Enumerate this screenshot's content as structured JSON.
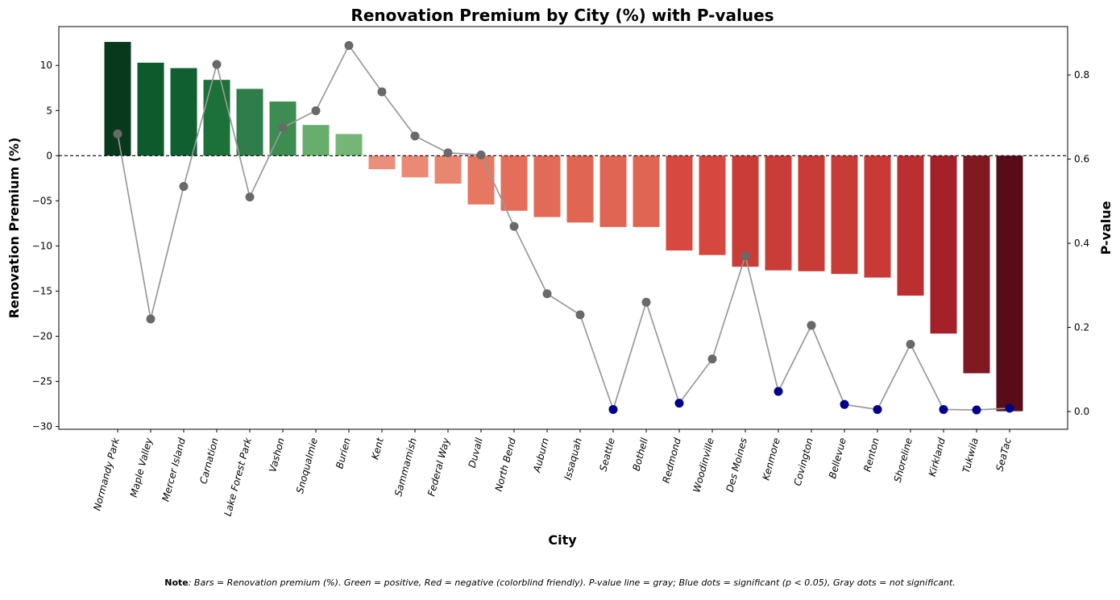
{
  "chart_data": {
    "type": "bar",
    "title": "Renovation Premium by City (%) with P-values",
    "xlabel": "City",
    "ylabel": "Renovation Premium (%)",
    "y2label": "P-value",
    "ylim": [
      -30.3,
      14.3
    ],
    "y2lim": [
      -0.042,
      0.915
    ],
    "yticks": [
      10,
      5,
      0,
      -5,
      -10,
      -15,
      -20,
      -25,
      -30
    ],
    "yticklabels": [
      "10",
      "5",
      "0",
      "−05",
      "−10",
      "−15",
      "−20",
      "−25",
      "−30"
    ],
    "y2ticks": [
      0.0,
      0.2,
      0.4,
      0.6,
      0.8
    ],
    "y2ticklabels": [
      "0.0",
      "0.2",
      "0.4",
      "0.6",
      "0.8"
    ],
    "reference_line": 0,
    "grid": false,
    "categories": [
      "Normandy Park",
      "Maple Valley",
      "Mercer Island",
      "Carnation",
      "Lake Forest Park",
      "Vashon",
      "Snoqualmie",
      "Burien",
      "Kent",
      "Sammamish",
      "Federal Way",
      "Duvall",
      "North Bend",
      "Auburn",
      "Issaquah",
      "Seattle",
      "Bothell",
      "Redmond",
      "Woodinville",
      "Des Moines",
      "Kenmore",
      "Covington",
      "Bellevue",
      "Renton",
      "Shoreline",
      "Kirkland",
      "Tukwila",
      "SeaTac"
    ],
    "series": [
      {
        "values": [
          12.6,
          10.3,
          9.7,
          8.4,
          7.4,
          6.0,
          3.4,
          2.4,
          -1.5,
          -2.4,
          -3.1,
          -5.4,
          -6.1,
          -6.8,
          -7.4,
          -7.9,
          -7.9,
          -10.5,
          -11.0,
          -12.3,
          -12.7,
          -12.8,
          -13.1,
          -13.5,
          -15.5,
          -19.7,
          -24.1,
          -28.3
        ]
      },
      {
        "values": [
          0.66,
          0.22,
          0.535,
          0.825,
          0.51,
          0.675,
          0.715,
          0.87,
          0.76,
          0.655,
          0.615,
          0.61,
          0.44,
          0.28,
          0.23,
          0.005,
          0.26,
          0.02,
          0.125,
          0.37,
          0.048,
          0.205,
          0.017,
          0.005,
          0.16,
          0.005,
          0.004,
          0.008
        ]
      }
    ],
    "bar_colors": [
      "#08391c",
      "#0e5a2d",
      "#105f31",
      "#1c7138",
      "#2e7d4b",
      "#3d8d52",
      "#66ad6e",
      "#75b676",
      "#e98f7b",
      "#eb8a74",
      "#e98670",
      "#e67761",
      "#e46e5a",
      "#e26b57",
      "#e06653",
      "#e06552",
      "#e06552",
      "#d74940",
      "#d6473f",
      "#c93c37",
      "#c93c37",
      "#c83b36",
      "#c83b36",
      "#c73a36",
      "#bb2f30",
      "#a4212a",
      "#801a22",
      "#570c18"
    ],
    "line_color": "#999999",
    "significant_color": "#00008b",
    "not_significant_color": "#696969",
    "significance_threshold": 0.05
  },
  "note": {
    "label": "Note",
    "text": ": Bars = Renovation premium (%). Green = positive, Red = negative (colorblind friendly). P-value line = gray; Blue dots = significant (p < 0.05), Gray dots = not significant."
  }
}
